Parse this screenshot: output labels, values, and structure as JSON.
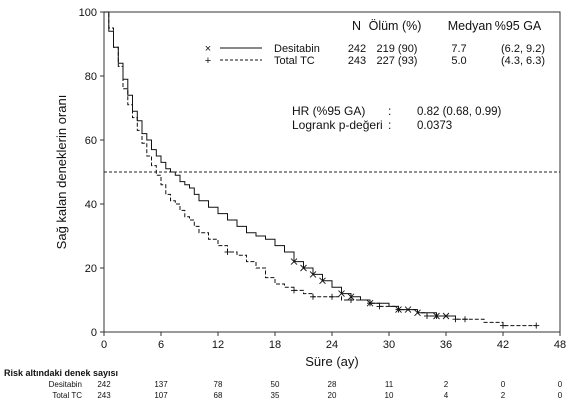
{
  "chart_data": {
    "type": "line",
    "subtype": "kaplan-meier",
    "xlabel": "Süre (ay)",
    "ylabel": "Sağ kalan deneklerin oranı",
    "xlim": [
      0,
      48
    ],
    "ylim": [
      0,
      100
    ],
    "xticks": [
      0,
      6,
      12,
      18,
      24,
      30,
      36,
      42,
      48
    ],
    "yticks": [
      0,
      20,
      40,
      60,
      80,
      100
    ],
    "reference_line_y": 50,
    "grid": false,
    "legend": {
      "headers": [
        "N",
        "Ölüm (%)",
        "Medyan",
        "%95 GA"
      ],
      "rows": [
        {
          "marker": "×",
          "line": "solid",
          "name": "Desitabin",
          "n": "242",
          "deaths": "219 (90)",
          "median": "7.7",
          "ci": "(6.2, 9.2)"
        },
        {
          "marker": "+",
          "line": "dashed",
          "name": "Total TC",
          "n": "243",
          "deaths": "227 (93)",
          "median": "5.0",
          "ci": "(4.3, 6.3)"
        }
      ]
    },
    "stats": [
      {
        "label": "HR (%95 GA)",
        "sep": ":",
        "value": "0.82 (0.68, 0.99)"
      },
      {
        "label": "Logrank p-değeri",
        "sep": ":",
        "value": "0.0373"
      }
    ],
    "series": [
      {
        "name": "Desitabin",
        "line": "solid",
        "x": [
          0,
          0.5,
          1,
          1.5,
          2,
          2.5,
          3,
          3.5,
          4,
          4.5,
          5,
          5.5,
          6,
          6.5,
          7,
          7.5,
          8,
          8.5,
          9,
          9.5,
          10,
          11,
          12,
          13,
          14,
          15,
          16,
          17,
          18,
          19,
          20,
          21,
          22,
          23,
          24,
          25,
          26,
          27,
          28,
          29,
          30,
          31,
          32,
          33,
          34,
          35,
          36,
          37
        ],
        "y": [
          100,
          94,
          89,
          84,
          79,
          74,
          69,
          66,
          62,
          60,
          57,
          55,
          53,
          51,
          50,
          49,
          47,
          46,
          45,
          43,
          41,
          39,
          37,
          35,
          33,
          31,
          30,
          29,
          27,
          25,
          22,
          20,
          18,
          16,
          14,
          12,
          11,
          10,
          9,
          9,
          8,
          7,
          7,
          6,
          6,
          5,
          5,
          5
        ]
      },
      {
        "name": "Total TC",
        "line": "dashed",
        "x": [
          0,
          0.5,
          1,
          1.5,
          2,
          2.5,
          3,
          3.5,
          4,
          4.5,
          5,
          5.5,
          6,
          6.5,
          7,
          7.5,
          8,
          8.5,
          9,
          9.5,
          10,
          11,
          12,
          13,
          14,
          15,
          16,
          17,
          18,
          19,
          20,
          21,
          22,
          23,
          24,
          25,
          26,
          27,
          28,
          29,
          30,
          31,
          32,
          33,
          34,
          35,
          36,
          37,
          38,
          40,
          42,
          44,
          45.5
        ],
        "y": [
          100,
          95,
          89,
          83,
          76,
          71,
          67,
          63,
          59,
          55,
          52,
          49,
          46,
          43,
          41,
          40,
          38,
          36,
          35,
          33,
          31,
          29,
          27,
          25,
          24,
          22,
          20,
          17,
          15,
          14,
          13,
          12,
          11,
          11,
          11,
          10,
          10,
          10,
          9,
          8,
          8,
          7,
          7,
          6,
          5,
          5,
          5,
          4,
          4,
          3,
          2,
          2,
          2
        ]
      }
    ],
    "censor_marks": {
      "Desitabin": [
        20,
        21,
        22,
        23,
        25,
        26,
        28,
        31,
        32,
        33,
        35,
        36
      ],
      "Total TC": [
        13,
        20,
        22,
        24,
        26,
        28,
        29,
        31,
        34,
        35,
        37,
        38,
        42,
        45.5
      ]
    }
  },
  "risk_table": {
    "title": "Risk altındaki denek sayısı",
    "columns": [
      0,
      6,
      12,
      18,
      24,
      30,
      36,
      42,
      48
    ],
    "rows": [
      {
        "name": "Desitabin",
        "values": [
          "242",
          "137",
          "78",
          "50",
          "28",
          "11",
          "2",
          "0",
          "0"
        ]
      },
      {
        "name": "Total TC",
        "values": [
          "243",
          "107",
          "68",
          "35",
          "20",
          "10",
          "4",
          "2",
          "0"
        ]
      }
    ]
  }
}
